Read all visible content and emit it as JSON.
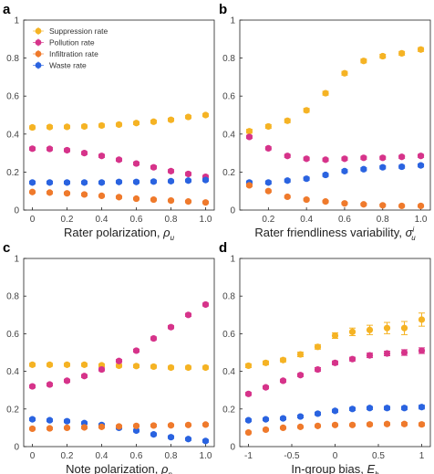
{
  "colors": {
    "Suppression rate": "#F5B324",
    "Pollution rate": "#D6338A",
    "Infiltration rate": "#EF7A2C",
    "Waste rate": "#2A63E0"
  },
  "chart_data": [
    {
      "type": "scatter",
      "panel_label": "a",
      "xlabel": "Rater polarization, ",
      "xsym": "ρ",
      "xsub": "u",
      "xsup": "",
      "xlim": [
        -0.05,
        1.05
      ],
      "ylim": [
        0,
        1
      ],
      "xticks": [
        0,
        0.2,
        0.4,
        0.6,
        0.8,
        1
      ],
      "xtick_labels": [
        "0",
        "0.2",
        "0.4",
        "0.6",
        "0.8",
        "1.0"
      ],
      "yticks": [
        0,
        0.2,
        0.4,
        0.6,
        0.8,
        1
      ],
      "ytick_labels": [
        "0",
        "0.2",
        "0.4",
        "0.6",
        "0.8",
        "1"
      ],
      "legend": [
        "Suppression rate",
        "Pollution rate",
        "Infiltration rate",
        "Waste rate"
      ],
      "x": [
        0,
        0.1,
        0.2,
        0.3,
        0.4,
        0.5,
        0.6,
        0.7,
        0.8,
        0.9,
        1.0
      ],
      "series": [
        {
          "name": "Suppression rate",
          "values": [
            0.435,
            0.437,
            0.438,
            0.44,
            0.445,
            0.45,
            0.458,
            0.465,
            0.475,
            0.49,
            0.5
          ],
          "err": [
            0.008,
            0.008,
            0.008,
            0.008,
            0.008,
            0.008,
            0.008,
            0.008,
            0.008,
            0.008,
            0.008
          ]
        },
        {
          "name": "Pollution rate",
          "values": [
            0.323,
            0.322,
            0.315,
            0.3,
            0.285,
            0.265,
            0.245,
            0.225,
            0.205,
            0.19,
            0.175
          ],
          "err": [
            0.008,
            0.008,
            0.008,
            0.008,
            0.008,
            0.008,
            0.008,
            0.008,
            0.008,
            0.008,
            0.008
          ]
        },
        {
          "name": "Waste rate",
          "values": [
            0.145,
            0.145,
            0.145,
            0.145,
            0.145,
            0.148,
            0.148,
            0.15,
            0.152,
            0.155,
            0.158
          ],
          "err": [
            0.007,
            0.007,
            0.007,
            0.007,
            0.007,
            0.007,
            0.007,
            0.007,
            0.007,
            0.007,
            0.007
          ]
        },
        {
          "name": "Infiltration rate",
          "values": [
            0.095,
            0.092,
            0.088,
            0.082,
            0.075,
            0.068,
            0.06,
            0.055,
            0.05,
            0.045,
            0.04
          ],
          "err": [
            0.006,
            0.006,
            0.006,
            0.006,
            0.006,
            0.006,
            0.006,
            0.006,
            0.006,
            0.006,
            0.006
          ]
        }
      ]
    },
    {
      "type": "scatter",
      "panel_label": "b",
      "xlabel": "Rater friendliness variability, ",
      "xsym": "σ",
      "xsub": "u",
      "xsup": "i",
      "xlim": [
        0.05,
        1.05
      ],
      "ylim": [
        0,
        1
      ],
      "xticks": [
        0.2,
        0.4,
        0.6,
        0.8,
        1
      ],
      "xtick_labels": [
        "0.2",
        "0.4",
        "0.6",
        "0.8",
        "1.0"
      ],
      "yticks": [
        0,
        0.2,
        0.4,
        0.6,
        0.8,
        1
      ],
      "ytick_labels": [
        "0",
        "0.2",
        "0.4",
        "0.6",
        "0.8",
        "1"
      ],
      "legend": [],
      "x": [
        0.1,
        0.2,
        0.3,
        0.4,
        0.5,
        0.6,
        0.7,
        0.8,
        0.9,
        1.0
      ],
      "series": [
        {
          "name": "Suppression rate",
          "values": [
            0.415,
            0.44,
            0.47,
            0.525,
            0.615,
            0.72,
            0.785,
            0.81,
            0.825,
            0.845
          ],
          "err": [
            0.01,
            0.01,
            0.01,
            0.01,
            0.01,
            0.01,
            0.01,
            0.01,
            0.01,
            0.01
          ]
        },
        {
          "name": "Pollution rate",
          "values": [
            0.385,
            0.325,
            0.285,
            0.27,
            0.265,
            0.27,
            0.275,
            0.275,
            0.28,
            0.285
          ],
          "err": [
            0.008,
            0.008,
            0.008,
            0.008,
            0.008,
            0.008,
            0.008,
            0.008,
            0.008,
            0.008
          ]
        },
        {
          "name": "Waste rate",
          "values": [
            0.145,
            0.145,
            0.155,
            0.165,
            0.185,
            0.205,
            0.215,
            0.225,
            0.228,
            0.235
          ],
          "err": [
            0.008,
            0.008,
            0.008,
            0.008,
            0.008,
            0.008,
            0.008,
            0.008,
            0.008,
            0.008
          ]
        },
        {
          "name": "Infiltration rate",
          "values": [
            0.13,
            0.1,
            0.07,
            0.055,
            0.045,
            0.035,
            0.03,
            0.025,
            0.022,
            0.022
          ],
          "err": [
            0.006,
            0.006,
            0.006,
            0.006,
            0.006,
            0.006,
            0.006,
            0.006,
            0.006,
            0.006
          ]
        }
      ]
    },
    {
      "type": "scatter",
      "panel_label": "c",
      "xlabel": "Note polarization, ",
      "xsym": "ρ",
      "xsub": "n",
      "xsup": "",
      "xlim": [
        -0.05,
        1.05
      ],
      "ylim": [
        0,
        1
      ],
      "xticks": [
        0,
        0.2,
        0.4,
        0.6,
        0.8,
        1
      ],
      "xtick_labels": [
        "0",
        "0.2",
        "0.4",
        "0.6",
        "0.8",
        "1.0"
      ],
      "yticks": [
        0,
        0.2,
        0.4,
        0.6,
        0.8,
        1
      ],
      "ytick_labels": [
        "0",
        "0.2",
        "0.4",
        "0.6",
        "0.8",
        "1"
      ],
      "legend": [],
      "x": [
        0,
        0.1,
        0.2,
        0.3,
        0.4,
        0.5,
        0.6,
        0.7,
        0.8,
        0.9,
        1.0
      ],
      "series": [
        {
          "name": "Suppression rate",
          "values": [
            0.435,
            0.435,
            0.435,
            0.435,
            0.432,
            0.43,
            0.428,
            0.425,
            0.42,
            0.42,
            0.42
          ],
          "err": [
            0.008,
            0.008,
            0.008,
            0.008,
            0.008,
            0.008,
            0.008,
            0.008,
            0.008,
            0.008,
            0.008
          ]
        },
        {
          "name": "Pollution rate",
          "values": [
            0.32,
            0.33,
            0.35,
            0.375,
            0.41,
            0.455,
            0.51,
            0.575,
            0.635,
            0.7,
            0.755
          ],
          "err": [
            0.008,
            0.008,
            0.008,
            0.008,
            0.008,
            0.008,
            0.008,
            0.008,
            0.008,
            0.008,
            0.008
          ]
        },
        {
          "name": "Waste rate",
          "values": [
            0.145,
            0.14,
            0.135,
            0.125,
            0.115,
            0.1,
            0.085,
            0.065,
            0.05,
            0.04,
            0.03
          ],
          "err": [
            0.007,
            0.007,
            0.007,
            0.007,
            0.007,
            0.007,
            0.007,
            0.007,
            0.007,
            0.007,
            0.007
          ]
        },
        {
          "name": "Infiltration rate",
          "values": [
            0.095,
            0.097,
            0.1,
            0.102,
            0.105,
            0.107,
            0.11,
            0.112,
            0.113,
            0.115,
            0.117
          ],
          "err": [
            0.006,
            0.006,
            0.006,
            0.006,
            0.006,
            0.006,
            0.006,
            0.006,
            0.006,
            0.006,
            0.006
          ]
        }
      ]
    },
    {
      "type": "scatter",
      "panel_label": "d",
      "xlabel": "In-group bias, ",
      "xsym": "E",
      "xsub": "h",
      "xsup": "",
      "xlim": [
        -1.1,
        1.1
      ],
      "ylim": [
        0,
        1
      ],
      "xticks": [
        -1,
        -0.5,
        0,
        0.5,
        1
      ],
      "xtick_labels": [
        "-1",
        "-0.5",
        "0",
        "0.5",
        "1"
      ],
      "yticks": [
        0,
        0.2,
        0.4,
        0.6,
        0.8,
        1
      ],
      "ytick_labels": [
        "0",
        "0.2",
        "0.4",
        "0.6",
        "0.8",
        "1"
      ],
      "legend": [],
      "x": [
        -1,
        -0.8,
        -0.6,
        -0.4,
        -0.2,
        0,
        0.2,
        0.4,
        0.6,
        0.8,
        1.0
      ],
      "series": [
        {
          "name": "Suppression rate",
          "values": [
            0.43,
            0.445,
            0.46,
            0.49,
            0.53,
            0.59,
            0.61,
            0.62,
            0.63,
            0.63,
            0.675
          ],
          "err": [
            0.01,
            0.01,
            0.01,
            0.012,
            0.012,
            0.015,
            0.02,
            0.025,
            0.03,
            0.035,
            0.035
          ]
        },
        {
          "name": "Pollution rate",
          "values": [
            0.28,
            0.315,
            0.35,
            0.38,
            0.41,
            0.445,
            0.465,
            0.485,
            0.495,
            0.5,
            0.51
          ],
          "err": [
            0.008,
            0.008,
            0.008,
            0.008,
            0.01,
            0.01,
            0.01,
            0.012,
            0.012,
            0.015,
            0.015
          ]
        },
        {
          "name": "Waste rate",
          "values": [
            0.14,
            0.145,
            0.15,
            0.16,
            0.175,
            0.19,
            0.2,
            0.205,
            0.205,
            0.205,
            0.21
          ],
          "err": [
            0.007,
            0.007,
            0.007,
            0.007,
            0.008,
            0.008,
            0.008,
            0.008,
            0.009,
            0.009,
            0.01
          ]
        },
        {
          "name": "Infiltration rate",
          "values": [
            0.075,
            0.09,
            0.1,
            0.105,
            0.11,
            0.115,
            0.115,
            0.118,
            0.12,
            0.12,
            0.118
          ],
          "err": [
            0.006,
            0.006,
            0.006,
            0.006,
            0.006,
            0.006,
            0.006,
            0.007,
            0.007,
            0.008,
            0.008
          ]
        }
      ]
    }
  ]
}
